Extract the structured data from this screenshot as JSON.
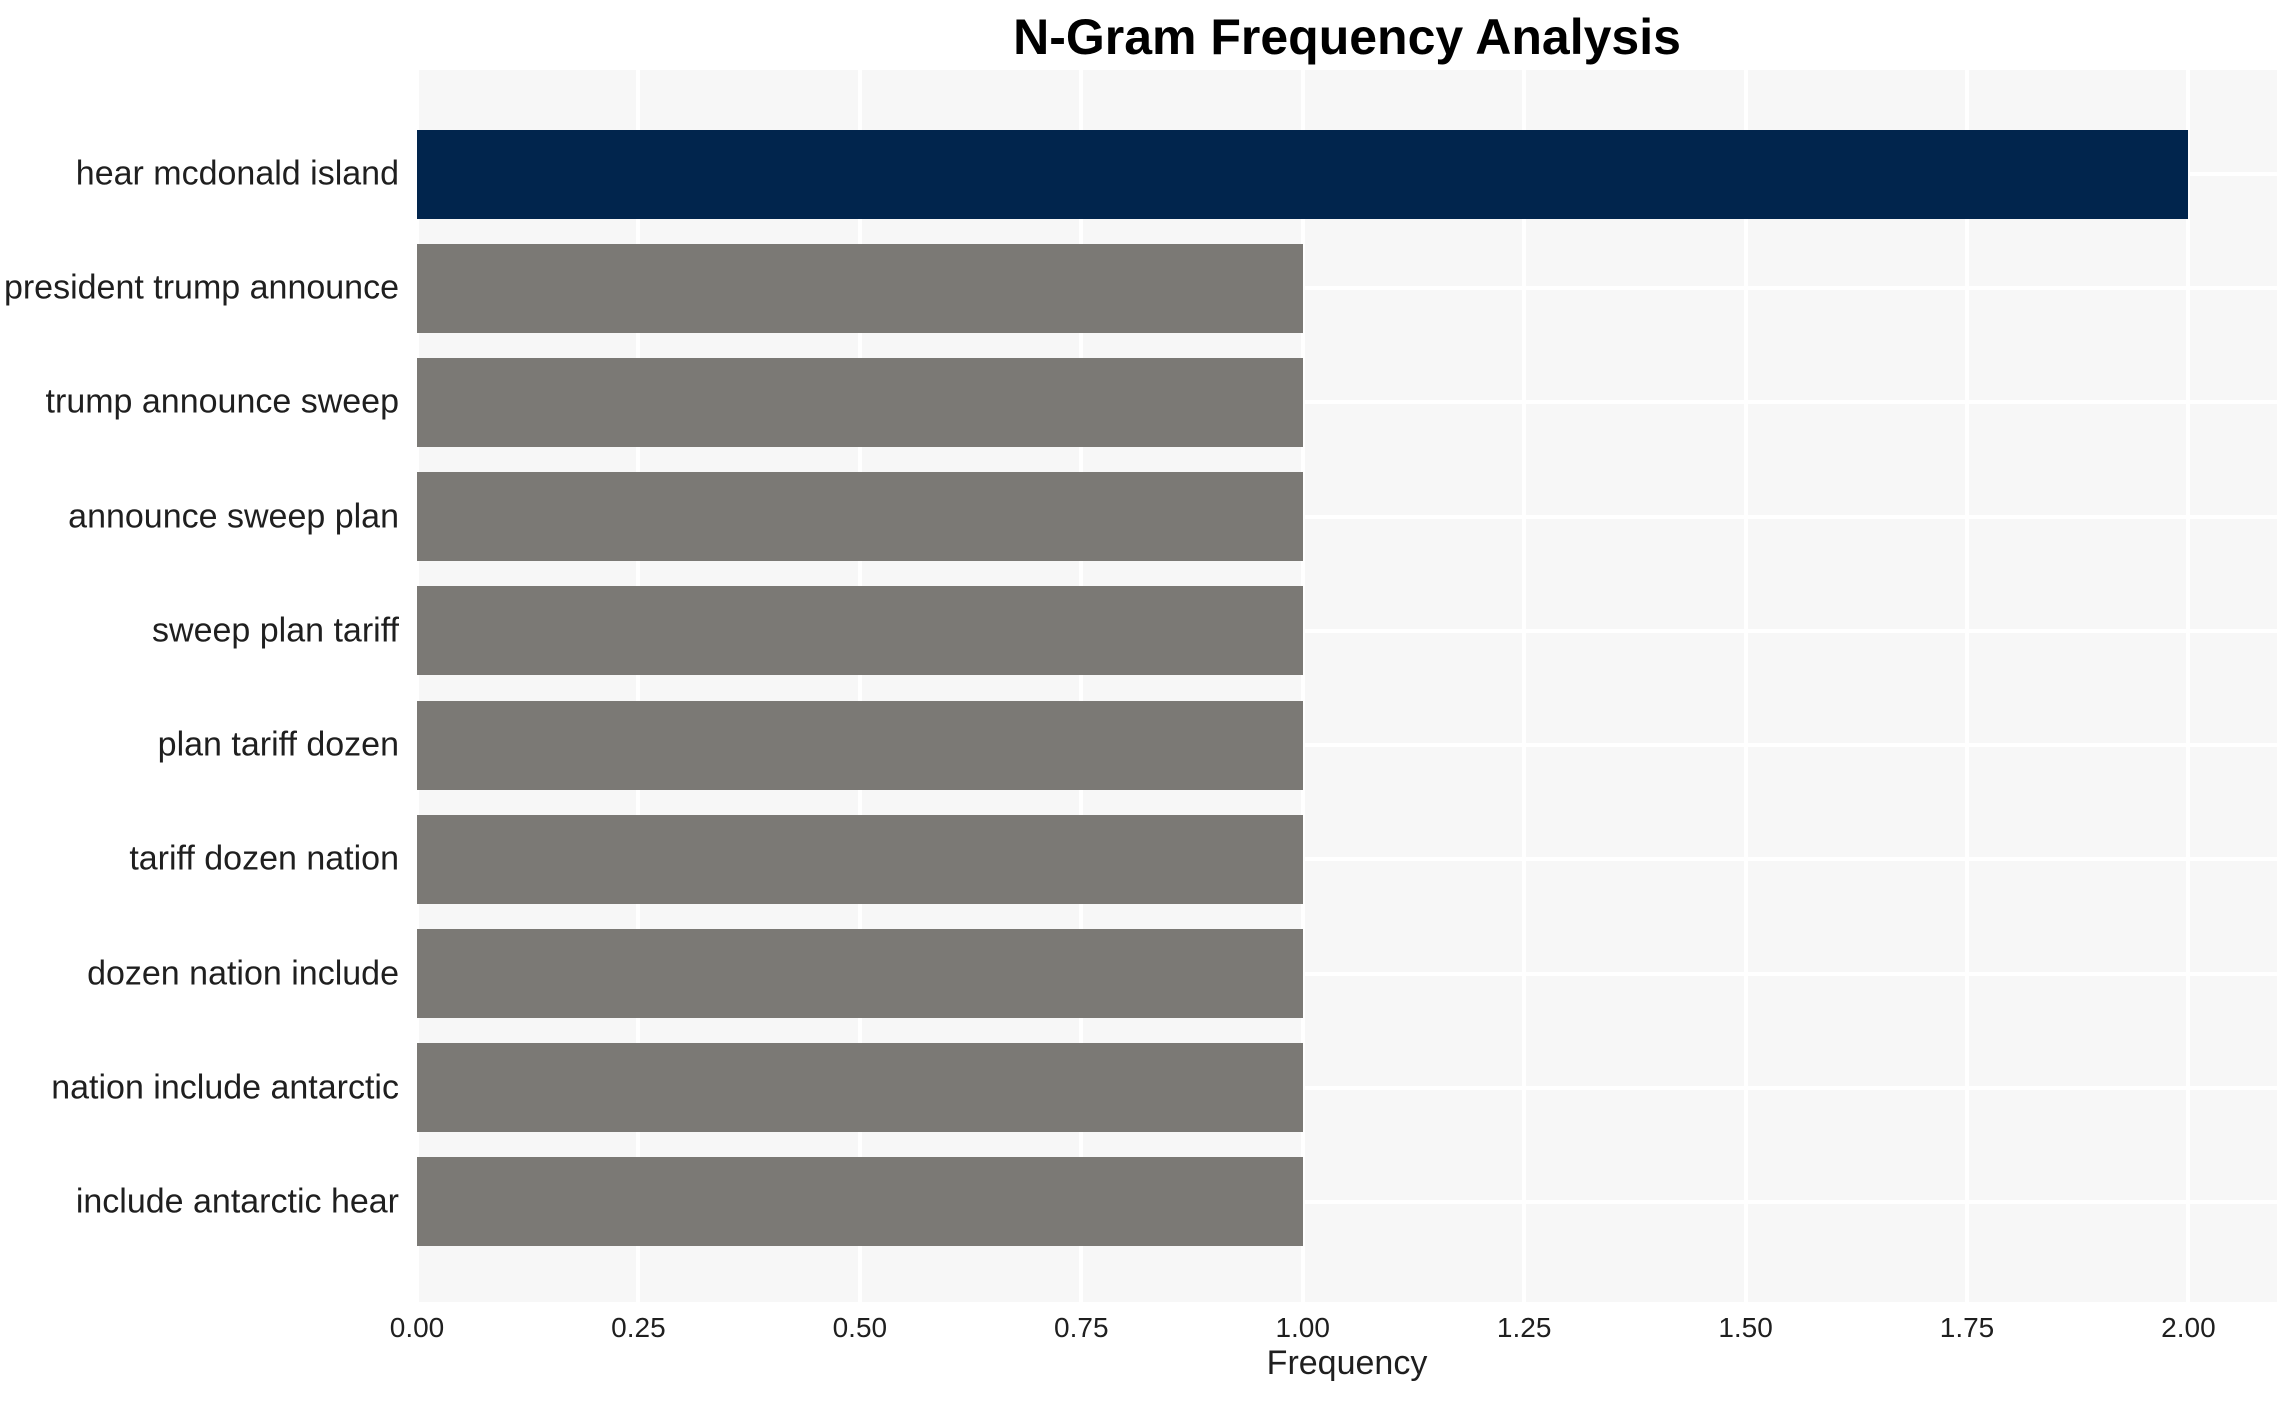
{
  "chart_data": {
    "type": "bar",
    "orientation": "horizontal",
    "title": "N-Gram Frequency Analysis",
    "xlabel": "Frequency",
    "ylabel": "",
    "categories": [
      "hear mcdonald island",
      "president trump announce",
      "trump announce sweep",
      "announce sweep plan",
      "sweep plan tariff",
      "plan tariff dozen",
      "tariff dozen nation",
      "dozen nation include",
      "nation include antarctic",
      "include antarctic hear"
    ],
    "values": [
      2,
      1,
      1,
      1,
      1,
      1,
      1,
      1,
      1,
      1
    ],
    "colors": [
      "#01254d",
      "#7b7975",
      "#7b7975",
      "#7b7975",
      "#7b7975",
      "#7b7975",
      "#7b7975",
      "#7b7975",
      "#7b7975",
      "#7b7975"
    ],
    "highlight_color": "#01254d",
    "base_color": "#7b7975",
    "xlim": [
      0,
      2.1
    ],
    "xticks": [
      {
        "v": 0.0,
        "label": "0.00"
      },
      {
        "v": 0.25,
        "label": "0.25"
      },
      {
        "v": 0.5,
        "label": "0.50"
      },
      {
        "v": 0.75,
        "label": "0.75"
      },
      {
        "v": 1.0,
        "label": "1.00"
      },
      {
        "v": 1.25,
        "label": "1.25"
      },
      {
        "v": 1.5,
        "label": "1.50"
      },
      {
        "v": 1.75,
        "label": "1.75"
      },
      {
        "v": 2.0,
        "label": "2.00"
      }
    ],
    "grid": true,
    "grid_color": "#ffffff",
    "plot_bg": "#f7f7f7",
    "legend": false,
    "title_color": "#000000",
    "text_color": "#1f1f1f"
  }
}
